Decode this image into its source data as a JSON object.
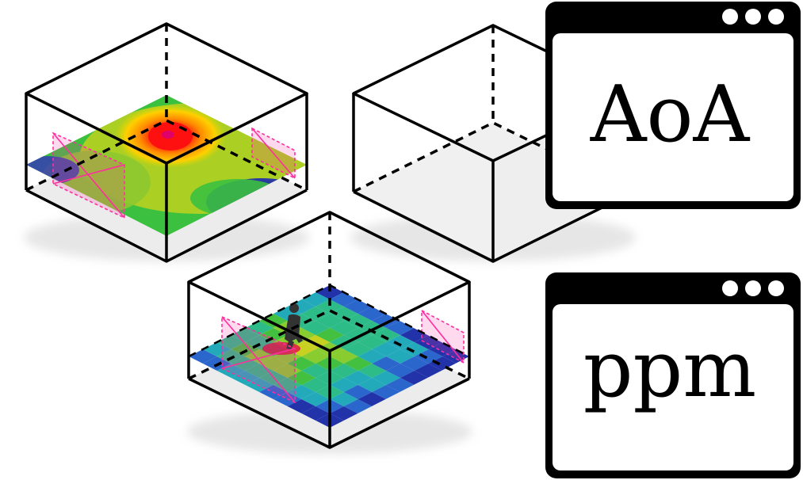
{
  "windows": [
    {
      "label": "AoA",
      "button_count": 3
    },
    {
      "label": "ppm",
      "button_count": 3
    }
  ],
  "colors": {
    "stroke": "#000000",
    "floor_shade": "#ececec",
    "overlay_pink": "#ff2da0",
    "heat_red": "#ff1010",
    "heat_orange": "#ff8a00",
    "heat_yellow": "#d8d800",
    "heat_green": "#3cc040",
    "heat_teal": "#22aabb",
    "heat_blue": "#3333bb",
    "person": "#333333"
  },
  "icons": [
    "person-icon",
    "window-buttons-icon"
  ]
}
